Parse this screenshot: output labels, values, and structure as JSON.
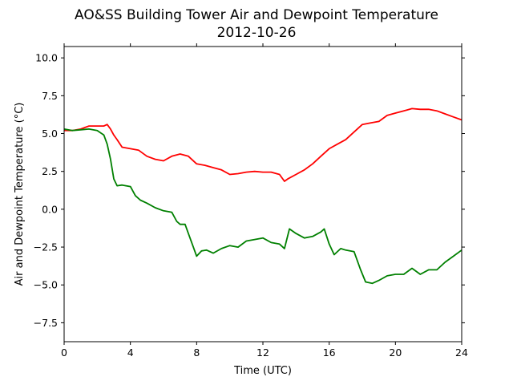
{
  "chart_data": {
    "type": "line",
    "title": "AO&SS Building Tower Air and Dewpoint Temperature",
    "subtitle": "2012-10-26",
    "xlabel": "Time (UTC)",
    "ylabel": "Air and Dewpoint Temperature (°C)",
    "xlim": [
      0,
      24
    ],
    "ylim": [
      -8.75,
      10.75
    ],
    "xticks": [
      0,
      4,
      8,
      12,
      16,
      20,
      24
    ],
    "yticks": [
      -7.5,
      -5.0,
      -2.5,
      0.0,
      2.5,
      5.0,
      7.5,
      10.0
    ],
    "ytick_labels": [
      "−7.5",
      "−5.0",
      "−2.5",
      "0.0",
      "2.5",
      "5.0",
      "7.5",
      "10.0"
    ],
    "grid": false,
    "series": [
      {
        "color": "#ff0000",
        "x": [
          0,
          0.5,
          1.0,
          1.5,
          2.0,
          2.4,
          2.6,
          2.8,
          3.0,
          3.2,
          3.5,
          4.0,
          4.5,
          5.0,
          5.5,
          6.0,
          6.5,
          7.0,
          7.5,
          8.0,
          8.5,
          9.0,
          9.5,
          10.0,
          10.5,
          11.0,
          11.5,
          12.0,
          12.5,
          13.0,
          13.3,
          13.5,
          14.0,
          14.5,
          15.0,
          15.5,
          16.0,
          16.5,
          17.0,
          17.5,
          18.0,
          18.5,
          19.0,
          19.5,
          20.0,
          20.5,
          21.0,
          21.5,
          22.0,
          22.5,
          23.0,
          23.5,
          24.0
        ],
        "values": [
          5.2,
          5.2,
          5.3,
          5.5,
          5.5,
          5.5,
          5.6,
          5.3,
          4.9,
          4.6,
          4.1,
          4.0,
          3.9,
          3.5,
          3.3,
          3.2,
          3.5,
          3.65,
          3.5,
          3.0,
          2.9,
          2.75,
          2.6,
          2.3,
          2.35,
          2.45,
          2.5,
          2.45,
          2.45,
          2.3,
          1.85,
          2.0,
          2.3,
          2.6,
          3.0,
          3.5,
          4.0,
          4.3,
          4.6,
          5.1,
          5.6,
          5.7,
          5.8,
          6.2,
          6.35,
          6.5,
          6.65,
          6.6,
          6.6,
          6.5,
          6.3,
          6.1,
          5.9
        ]
      },
      {
        "color": "#008000",
        "x": [
          0,
          0.5,
          1.0,
          1.5,
          2.0,
          2.4,
          2.6,
          2.8,
          3.0,
          3.2,
          3.5,
          4.0,
          4.3,
          4.6,
          5.0,
          5.5,
          6.0,
          6.5,
          6.8,
          7.0,
          7.3,
          7.5,
          7.8,
          8.0,
          8.3,
          8.6,
          9.0,
          9.5,
          10.0,
          10.5,
          11.0,
          11.5,
          12.0,
          12.5,
          13.0,
          13.3,
          13.6,
          14.0,
          14.5,
          15.0,
          15.5,
          15.7,
          16.0,
          16.3,
          16.7,
          17.0,
          17.5,
          17.9,
          18.2,
          18.6,
          19.0,
          19.5,
          20.0,
          20.5,
          21.0,
          21.5,
          22.0,
          22.5,
          23.0,
          23.5,
          24.0
        ],
        "values": [
          5.3,
          5.2,
          5.25,
          5.3,
          5.2,
          4.9,
          4.3,
          3.3,
          2.0,
          1.55,
          1.6,
          1.5,
          0.9,
          0.6,
          0.4,
          0.1,
          -0.1,
          -0.2,
          -0.8,
          -1.0,
          -1.0,
          -1.6,
          -2.5,
          -3.1,
          -2.75,
          -2.7,
          -2.9,
          -2.6,
          -2.4,
          -2.5,
          -2.1,
          -2.0,
          -1.9,
          -2.2,
          -2.3,
          -2.6,
          -1.3,
          -1.6,
          -1.9,
          -1.8,
          -1.5,
          -1.3,
          -2.3,
          -3.0,
          -2.6,
          -2.7,
          -2.8,
          -4.0,
          -4.8,
          -4.9,
          -4.7,
          -4.4,
          -4.3,
          -4.3,
          -3.9,
          -4.3,
          -4.0,
          -4.0,
          -3.5,
          -3.1,
          -2.7
        ]
      }
    ]
  }
}
